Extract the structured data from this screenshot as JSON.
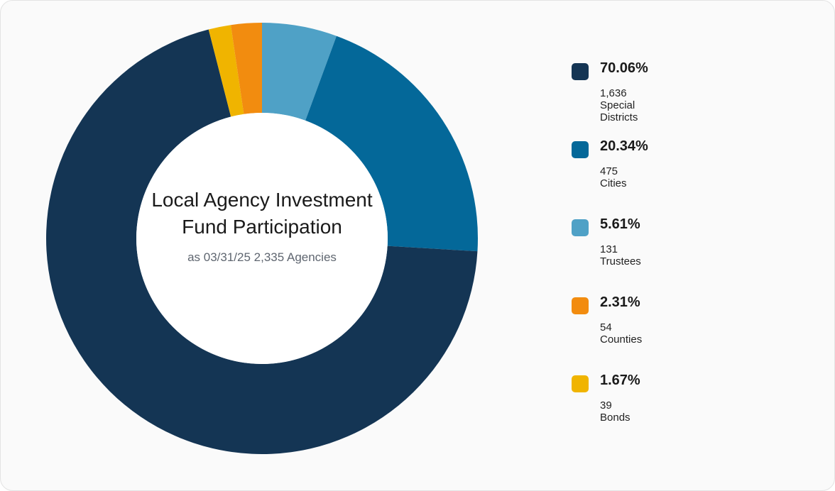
{
  "chart_data": {
    "type": "pie",
    "donut": true,
    "title": "Local Agency Investment Fund Participation",
    "subtitle": "as 03/31/25 2,335 Agencies",
    "legend_position": "right",
    "slices": [
      {
        "label": "131 Trustees",
        "percent_label": "5.61%",
        "value": 5.61,
        "count": 131,
        "color": "#4fa1c6"
      },
      {
        "label": "475 Cities",
        "percent_label": "20.34%",
        "value": 20.34,
        "count": 475,
        "color": "#046899"
      },
      {
        "label": "1,636 Special Districts",
        "percent_label": "70.06%",
        "value": 70.06,
        "count": 1636,
        "color": "#143554"
      },
      {
        "label": "39 Bonds",
        "percent_label": "1.67%",
        "value": 1.67,
        "count": 39,
        "color": "#f0b400"
      },
      {
        "label": "54 Counties",
        "percent_label": "2.31%",
        "value": 2.31,
        "count": 54,
        "color": "#f28c0f"
      }
    ],
    "legend_order": [
      2,
      1,
      0,
      4,
      3
    ]
  }
}
